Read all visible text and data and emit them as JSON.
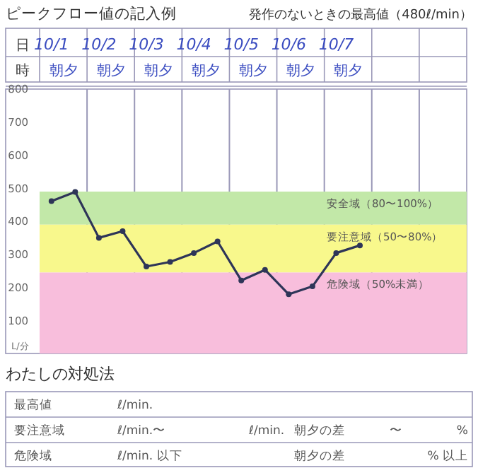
{
  "chart_data": {
    "type": "line",
    "title": "ピークフロー値の記入例",
    "subtitle": "発作のないときの最高値（480ℓ/min）",
    "ylabel": "L/分",
    "categories": [
      "10/1",
      null,
      "10/2",
      null,
      "10/3",
      null,
      "10/4",
      null,
      "10/5",
      null,
      "10/6",
      null,
      "10/7",
      null,
      null,
      null,
      null,
      null
    ],
    "series": [
      {
        "color": "#2e3558",
        "values": [
          461,
          489,
          350,
          370,
          263,
          277,
          304,
          339,
          221,
          253,
          179,
          203,
          304,
          327,
          null,
          null,
          null,
          null
        ]
      }
    ],
    "ylim": [
      0,
      800
    ],
    "yticks": [
      100,
      200,
      300,
      400,
      500,
      600,
      700,
      800
    ],
    "grid": "x",
    "marker": "circle",
    "line_style": "solid",
    "bands": [
      {
        "axis": "y",
        "from": 390,
        "to": 490,
        "label": "安全域（80〜100%）",
        "color": "#c2e8a8"
      },
      {
        "axis": "y",
        "from": 245,
        "to": 390,
        "label": "要注意域（50〜80%）",
        "color": "#f8f88c"
      },
      {
        "axis": "y",
        "from": 0,
        "to": 245,
        "label": "危険域（50%未満）",
        "color": "#f8bedc"
      }
    ],
    "annotations": [
      "日",
      "時",
      "朝夕",
      "朝夕",
      "朝夕",
      "朝夕",
      "朝夕",
      "朝夕",
      "朝夕",
      "わたしの対処法",
      "最高値",
      "ℓ/min.",
      "要注意域",
      "ℓ/min.〜",
      "ℓ/min.",
      "朝夕の差",
      "〜",
      "%",
      "危険域",
      "ℓ/min. 以下",
      "朝夕の差",
      "% 以上"
    ]
  }
}
